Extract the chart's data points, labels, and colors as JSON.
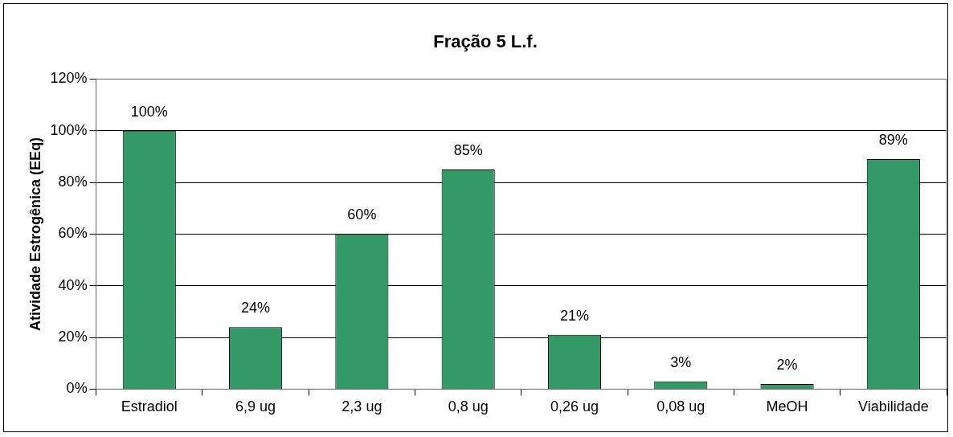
{
  "chart_data": {
    "type": "bar",
    "title": "Fração 5 L.f.",
    "ylabel": "Atividade Estrogênica (EEq)",
    "categories": [
      "Estradiol",
      "6,9 ug",
      "2,3 ug",
      "0,8 ug",
      "0,26 ug",
      "0,08 ug",
      "MeOH",
      "Viabilidade"
    ],
    "values": [
      100,
      24,
      60,
      85,
      21,
      3,
      2,
      89
    ],
    "value_labels": [
      "100%",
      "24%",
      "60%",
      "85%",
      "21%",
      "3%",
      "2%",
      "89%"
    ],
    "color": "#339966",
    "ylim": [
      0,
      120
    ],
    "yticks": [
      {
        "value": 0,
        "label": "0%"
      },
      {
        "value": 20,
        "label": "20%"
      },
      {
        "value": 40,
        "label": "40%"
      },
      {
        "value": 60,
        "label": "60%"
      },
      {
        "value": 80,
        "label": "80%"
      },
      {
        "value": 100,
        "label": "100%"
      },
      {
        "value": 120,
        "label": "120%"
      }
    ],
    "grid": "y",
    "legend": false
  }
}
